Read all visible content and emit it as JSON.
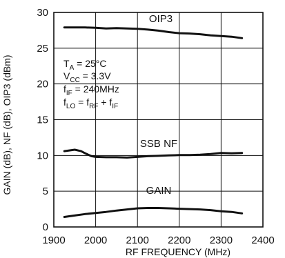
{
  "chart_data": {
    "type": "line",
    "xlabel": "RF FREQUENCY (MHz)",
    "ylabel": "GAIN (dB), NF (dB), OIP3 (dBm)",
    "xlim": [
      1900,
      2400
    ],
    "ylim": [
      0,
      30
    ],
    "xticks": [
      "1900",
      "2000",
      "2100",
      "2200",
      "2300",
      "2400"
    ],
    "yticks": [
      "0",
      "5",
      "10",
      "15",
      "20",
      "25",
      "30"
    ],
    "grid": true,
    "conditions": {
      "ta": {
        "main": "T",
        "sub": "A",
        "rest": " = 25°C"
      },
      "vcc": {
        "main": "V",
        "sub": "CC",
        "rest": " = 3.3V"
      },
      "fif": {
        "main": "f",
        "sub": "IF",
        "rest": " = 240MHz"
      },
      "flo": {
        "main": "f",
        "sub": "LO",
        "mid": " = f",
        "sub2": "RF",
        "mid2": " + f",
        "sub3": "IF"
      }
    },
    "series": [
      {
        "name": "OIP3",
        "color": "#111111",
        "x": [
          1925,
          1950,
          1975,
          2000,
          2025,
          2050,
          2075,
          2100,
          2125,
          2150,
          2175,
          2200,
          2225,
          2250,
          2275,
          2300,
          2325,
          2350
        ],
        "y": [
          27.9,
          27.9,
          27.9,
          27.85,
          27.75,
          27.8,
          27.75,
          27.7,
          27.6,
          27.45,
          27.25,
          27.1,
          27.05,
          26.95,
          26.8,
          26.7,
          26.6,
          26.4
        ]
      },
      {
        "name": "SSB NF",
        "color": "#111111",
        "x": [
          1925,
          1950,
          1965,
          1975,
          1990,
          2000,
          2025,
          2050,
          2075,
          2100,
          2125,
          2150,
          2175,
          2200,
          2225,
          2250,
          2275,
          2300,
          2325,
          2350
        ],
        "y": [
          10.6,
          10.8,
          10.6,
          10.3,
          9.9,
          9.8,
          9.75,
          9.75,
          9.7,
          9.8,
          9.9,
          9.95,
          10.0,
          10.05,
          10.05,
          10.1,
          10.2,
          10.35,
          10.3,
          10.35
        ]
      },
      {
        "name": "GAIN",
        "color": "#111111",
        "x": [
          1925,
          1950,
          1975,
          2000,
          2025,
          2050,
          2075,
          2100,
          2125,
          2150,
          2175,
          2200,
          2225,
          2250,
          2275,
          2300,
          2325,
          2350
        ],
        "y": [
          1.4,
          1.6,
          1.8,
          1.95,
          2.1,
          2.3,
          2.45,
          2.6,
          2.65,
          2.65,
          2.6,
          2.55,
          2.5,
          2.45,
          2.35,
          2.2,
          2.1,
          1.9
        ]
      }
    ]
  }
}
